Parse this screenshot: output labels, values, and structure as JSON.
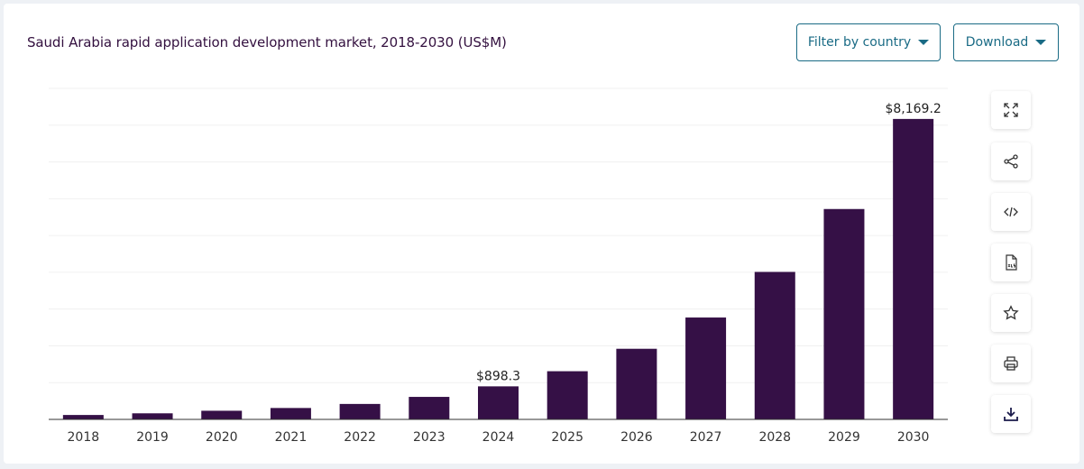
{
  "header": {
    "title": "Saudi Arabia rapid application development market, 2018-2030 (US$M)",
    "filter_label": "Filter by country",
    "download_label": "Download"
  },
  "colors": {
    "bar": "#351046",
    "accent": "#1a6b85",
    "title": "#33103f"
  },
  "toolbar": {
    "icons": [
      "expand-icon",
      "share-icon",
      "embed-code-icon",
      "xls-file-icon",
      "star-icon",
      "print-icon",
      "download-icon"
    ]
  },
  "chart_data": {
    "type": "bar",
    "title": "Saudi Arabia rapid application development market, 2018-2030 (US$M)",
    "categories": [
      "2018",
      "2019",
      "2020",
      "2021",
      "2022",
      "2023",
      "2024",
      "2025",
      "2026",
      "2027",
      "2028",
      "2029",
      "2030"
    ],
    "values": [
      120,
      165,
      235,
      310,
      420,
      612,
      898.3,
      1310,
      1920,
      2770,
      4010,
      5720,
      8169.2
    ],
    "data_labels": {
      "2024": "$898.3",
      "2030": "$8,169.2"
    },
    "ylim": [
      0,
      9000
    ],
    "grid": true,
    "legend": "none"
  }
}
